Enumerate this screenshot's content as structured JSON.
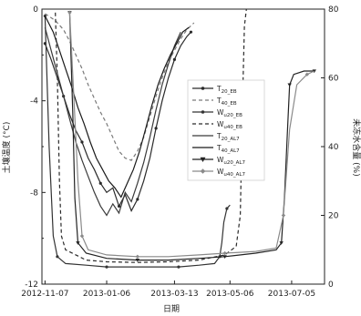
{
  "chart_data": {
    "type": "line",
    "xlabel": "日期",
    "ylabel_left": "土壤温度 (°C)",
    "ylabel_right": "未冻水含量 (%)",
    "x_ticks": [
      "2012-11-07",
      "2013-01-06",
      "2013-03-13",
      "2013-05-06",
      "2013-07-05"
    ],
    "x_tick_days": [
      0,
      60,
      126,
      180,
      240
    ],
    "xlim": [
      -3,
      272
    ],
    "ylim_left": [
      -12,
      0
    ],
    "y_ticks_left": [
      -12,
      -8,
      -4,
      0
    ],
    "ylim_right": [
      0,
      80
    ],
    "y_ticks_right": [
      0,
      20,
      40,
      60,
      80
    ],
    "legend_position": "center-right",
    "series": [
      {
        "name": "T20_EB",
        "label_main": "T",
        "label_sub": "20_EB",
        "axis": "left",
        "style": "solid-dot",
        "color": "#2a2a2a",
        "points": [
          [
            0,
            -1.5
          ],
          [
            6,
            -2.2
          ],
          [
            12,
            -3.0
          ],
          [
            18,
            -3.8
          ],
          [
            24,
            -4.6
          ],
          [
            30,
            -5.3
          ],
          [
            36,
            -5.8
          ],
          [
            42,
            -6.5
          ],
          [
            48,
            -7.0
          ],
          [
            54,
            -7.6
          ],
          [
            60,
            -8.0
          ],
          [
            66,
            -7.8
          ],
          [
            72,
            -8.6
          ],
          [
            78,
            -8.1
          ],
          [
            84,
            -8.8
          ],
          [
            90,
            -8.3
          ],
          [
            96,
            -7.5
          ],
          [
            102,
            -6.5
          ],
          [
            108,
            -5.2
          ],
          [
            114,
            -4.0
          ],
          [
            120,
            -3.0
          ],
          [
            126,
            -2.2
          ],
          [
            132,
            -1.6
          ],
          [
            138,
            -1.2
          ],
          [
            142,
            -1.0
          ]
        ]
      },
      {
        "name": "T40_EB",
        "label_main": "T",
        "label_sub": "40_EB",
        "axis": "left",
        "style": "dashed",
        "color": "#7a7a7a",
        "points": [
          [
            0,
            -0.2
          ],
          [
            10,
            -0.5
          ],
          [
            18,
            -0.9
          ],
          [
            24,
            -1.4
          ],
          [
            30,
            -2.0
          ],
          [
            36,
            -2.6
          ],
          [
            42,
            -3.3
          ],
          [
            48,
            -3.9
          ],
          [
            54,
            -4.5
          ],
          [
            60,
            -5.0
          ],
          [
            66,
            -5.6
          ],
          [
            72,
            -6.2
          ],
          [
            78,
            -6.5
          ],
          [
            84,
            -6.6
          ],
          [
            90,
            -6.2
          ],
          [
            96,
            -5.6
          ],
          [
            102,
            -4.7
          ],
          [
            108,
            -3.8
          ],
          [
            114,
            -3.0
          ],
          [
            120,
            -2.3
          ],
          [
            126,
            -1.8
          ],
          [
            132,
            -1.3
          ],
          [
            138,
            -0.9
          ],
          [
            145,
            -0.6
          ]
        ]
      },
      {
        "name": "Wu20_EB",
        "label_main": "W",
        "label_sub": "u20_EB",
        "axis": "right",
        "style": "solid-dot",
        "color": "#333333",
        "points": [
          [
            0,
            78
          ],
          [
            4,
            40
          ],
          [
            8,
            14
          ],
          [
            12,
            8
          ],
          [
            20,
            6
          ],
          [
            40,
            5.5
          ],
          [
            60,
            5
          ],
          [
            90,
            5
          ],
          [
            110,
            5
          ],
          [
            130,
            5
          ],
          [
            150,
            5.5
          ],
          [
            165,
            6
          ],
          [
            170,
            8
          ],
          [
            172,
            12
          ],
          [
            174,
            18
          ],
          [
            177,
            22
          ],
          [
            180,
            23
          ]
        ]
      },
      {
        "name": "Wu40_EB",
        "label_main": "W",
        "label_sub": "u40_EB",
        "axis": "right",
        "style": "dashed",
        "color": "#2a2a2a",
        "points": [
          [
            10,
            79
          ],
          [
            12,
            60
          ],
          [
            14,
            30
          ],
          [
            16,
            14
          ],
          [
            20,
            10
          ],
          [
            40,
            7
          ],
          [
            60,
            6.5
          ],
          [
            90,
            6.3
          ],
          [
            120,
            6.5
          ],
          [
            150,
            7
          ],
          [
            175,
            8.5
          ],
          [
            186,
            11
          ],
          [
            190,
            20
          ],
          [
            192,
            50
          ],
          [
            194,
            75
          ],
          [
            196,
            80
          ]
        ]
      },
      {
        "name": "T20_AL7",
        "label_main": "T",
        "label_sub": "20_AL7",
        "axis": "left",
        "style": "solid",
        "color": "#3a3a3a",
        "points": [
          [
            0,
            -0.8
          ],
          [
            6,
            -1.8
          ],
          [
            12,
            -2.8
          ],
          [
            18,
            -3.8
          ],
          [
            24,
            -4.8
          ],
          [
            30,
            -5.8
          ],
          [
            36,
            -6.6
          ],
          [
            42,
            -7.3
          ],
          [
            48,
            -8.0
          ],
          [
            54,
            -8.6
          ],
          [
            60,
            -9.0
          ],
          [
            66,
            -8.5
          ],
          [
            72,
            -8.9
          ],
          [
            78,
            -8.0
          ],
          [
            84,
            -8.4
          ],
          [
            90,
            -7.6
          ],
          [
            96,
            -6.7
          ],
          [
            102,
            -5.6
          ],
          [
            108,
            -4.4
          ],
          [
            114,
            -3.3
          ],
          [
            120,
            -2.4
          ],
          [
            126,
            -1.6
          ],
          [
            132,
            -1.0
          ]
        ]
      },
      {
        "name": "T40_AL7",
        "label_main": "T",
        "label_sub": "40_AL7",
        "axis": "left",
        "style": "solid",
        "color": "#1a1a1a",
        "points": [
          [
            0,
            -0.3
          ],
          [
            8,
            -1.0
          ],
          [
            14,
            -1.8
          ],
          [
            20,
            -2.6
          ],
          [
            26,
            -3.4
          ],
          [
            32,
            -4.3
          ],
          [
            38,
            -5.0
          ],
          [
            44,
            -5.8
          ],
          [
            50,
            -6.5
          ],
          [
            56,
            -7.0
          ],
          [
            62,
            -7.5
          ],
          [
            68,
            -7.8
          ],
          [
            74,
            -8.2
          ],
          [
            80,
            -7.6
          ],
          [
            86,
            -7.0
          ],
          [
            92,
            -6.2
          ],
          [
            98,
            -5.2
          ],
          [
            104,
            -4.2
          ],
          [
            110,
            -3.3
          ],
          [
            116,
            -2.6
          ],
          [
            122,
            -2.0
          ],
          [
            128,
            -1.5
          ],
          [
            134,
            -1.0
          ],
          [
            140,
            -0.8
          ]
        ]
      },
      {
        "name": "Wu20_AL7",
        "label_main": "W",
        "label_sub": "u20_AL7",
        "axis": "right",
        "style": "solid-triangle",
        "color": "#222222",
        "points": [
          [
            24,
            79
          ],
          [
            27,
            50
          ],
          [
            29,
            25
          ],
          [
            32,
            12
          ],
          [
            40,
            9
          ],
          [
            60,
            7.5
          ],
          [
            90,
            7
          ],
          [
            120,
            7
          ],
          [
            150,
            7.5
          ],
          [
            175,
            8
          ],
          [
            205,
            9
          ],
          [
            225,
            10
          ],
          [
            230,
            12
          ],
          [
            233,
            25
          ],
          [
            236,
            45
          ],
          [
            238,
            58
          ],
          [
            242,
            61
          ],
          [
            252,
            62
          ],
          [
            262,
            62
          ]
        ]
      },
      {
        "name": "Wu40_AL7",
        "label_main": "W",
        "label_sub": "u40_AL7",
        "axis": "right",
        "style": "solid-diamond",
        "color": "#8a8a8a",
        "points": [
          [
            24,
            79
          ],
          [
            28,
            55
          ],
          [
            32,
            30
          ],
          [
            36,
            14
          ],
          [
            42,
            10
          ],
          [
            60,
            8.5
          ],
          [
            90,
            8
          ],
          [
            120,
            8
          ],
          [
            150,
            8.5
          ],
          [
            175,
            9
          ],
          [
            205,
            9.5
          ],
          [
            225,
            10.5
          ],
          [
            232,
            20
          ],
          [
            238,
            45
          ],
          [
            245,
            58
          ],
          [
            255,
            61
          ],
          [
            262,
            62
          ]
        ]
      }
    ]
  }
}
